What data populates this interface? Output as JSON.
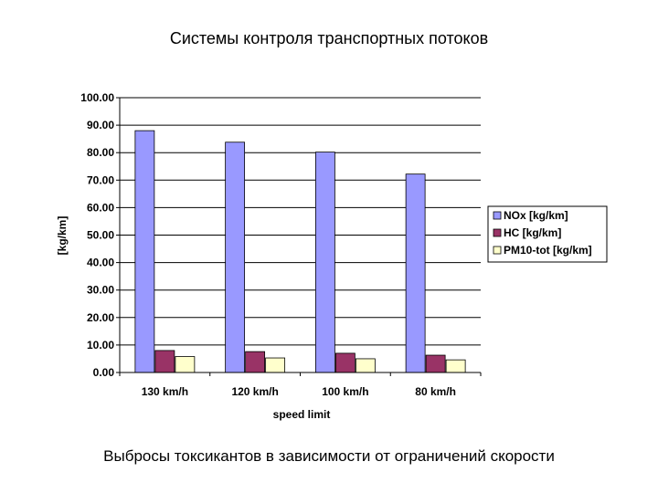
{
  "slide": {
    "title": "Системы контроля транспортных потоков",
    "caption": "Выбросы токсикантов в зависимости от ограничений скорости"
  },
  "chart_data": {
    "type": "bar",
    "categories": [
      "130 km/h",
      "120 km/h",
      "100 km/h",
      "80 km/h"
    ],
    "series": [
      {
        "name": "NOx [kg/km]",
        "values": [
          88.0,
          83.8,
          80.2,
          72.2
        ],
        "color": "#9999FF"
      },
      {
        "name": "HC [kg/km]",
        "values": [
          8.0,
          7.6,
          7.0,
          6.3
        ],
        "color": "#993366"
      },
      {
        "name": "PM10-tot [kg/km]",
        "values": [
          5.8,
          5.3,
          5.0,
          4.6
        ],
        "color": "#FFFFCC"
      }
    ],
    "title": "",
    "xlabel": "speed limit",
    "ylabel": "[kg/km]",
    "ylim": [
      0,
      100
    ],
    "yticks": [
      "0.00",
      "10.00",
      "20.00",
      "30.00",
      "40.00",
      "50.00",
      "60.00",
      "70.00",
      "80.00",
      "90.00",
      "100.00"
    ],
    "grid": true,
    "legend": "right"
  }
}
